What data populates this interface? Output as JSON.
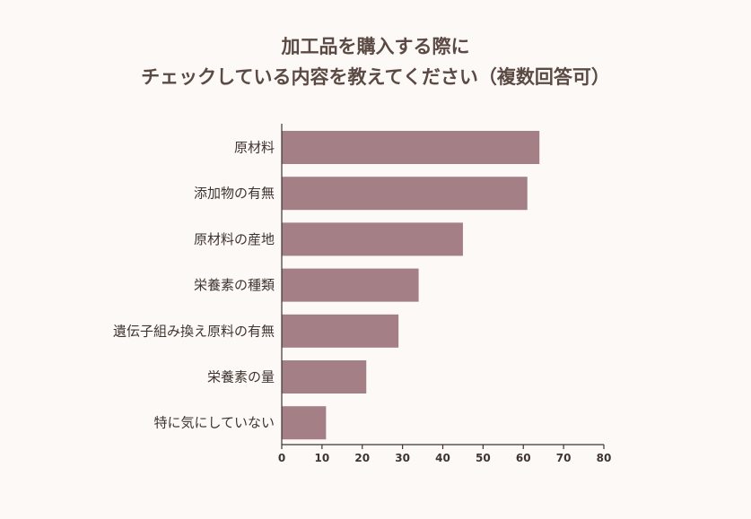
{
  "chart_data": {
    "type": "bar",
    "orientation": "horizontal",
    "title_lines": [
      "加工品を購入する際に",
      "チェックしている内容を教えてください（複数回答可）"
    ],
    "categories": [
      "原材料",
      "添加物の有無",
      "原材料の産地",
      "栄養素の種類",
      "遺伝子組み換え原料の有無",
      "栄養素の量",
      "特に気にしていない"
    ],
    "values": [
      64,
      61,
      45,
      34,
      29,
      21,
      11
    ],
    "xlim": [
      0,
      80
    ],
    "xticks": [
      "0",
      "10",
      "20",
      "30",
      "40",
      "50",
      "60",
      "70",
      "80"
    ],
    "grid": false,
    "bar_color": "#a47f86",
    "axis_color": "#3f3430"
  }
}
